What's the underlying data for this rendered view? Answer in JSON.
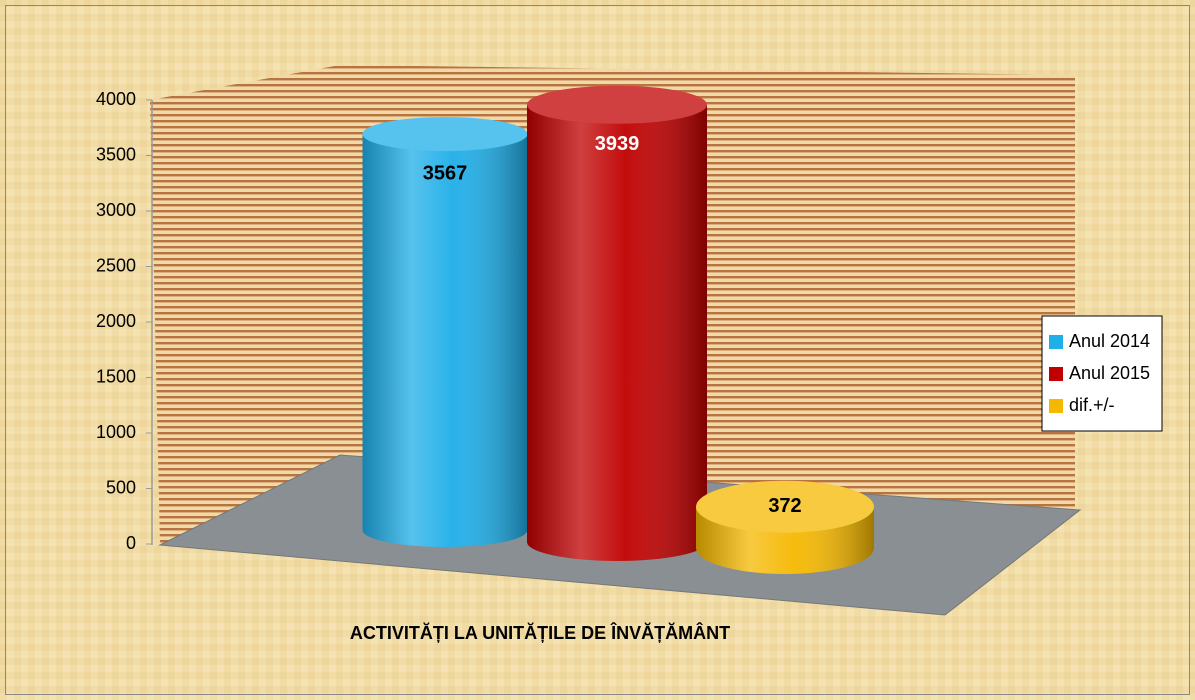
{
  "chart_data": {
    "type": "bar",
    "categories": [
      "ACTIVITĂȚI LA UNITĂȚILE DE ÎNVĂȚĂMÂNT"
    ],
    "series": [
      {
        "name": "Anul 2014",
        "color": "#1eaee8",
        "values": [
          3567
        ]
      },
      {
        "name": "Anul 2015",
        "color": "#c00000",
        "values": [
          3939
        ]
      },
      {
        "name": "dif.+/-",
        "color": "#f5b800",
        "values": [
          372
        ]
      }
    ],
    "ylim": [
      0,
      4000
    ],
    "yticks": [
      0,
      500,
      1000,
      1500,
      2000,
      2500,
      3000,
      3500,
      4000
    ],
    "legend": "right"
  }
}
